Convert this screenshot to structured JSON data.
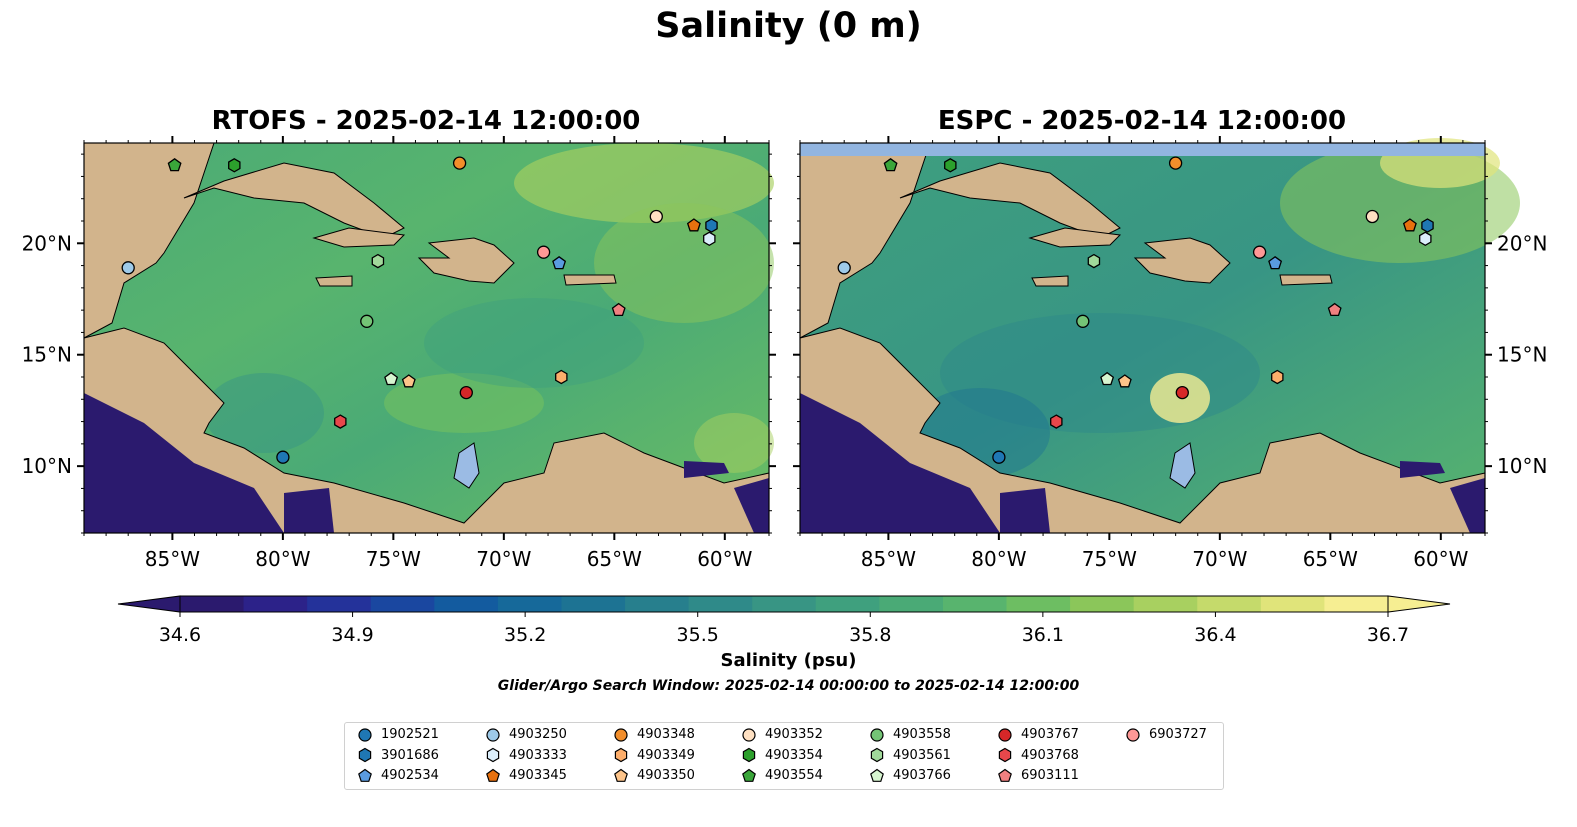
{
  "figure": {
    "title": "Salinity (0 m)",
    "colorbar_label": "Salinity (psu)",
    "search_window": "Glider/Argo Search Window: 2025-02-14 00:00:00 to 2025-02-14 12:00:00",
    "colors": {
      "land": "#d2b48c",
      "lake": "#9bbbe4",
      "missing_band": "#92b5e0"
    }
  },
  "chart_data": [
    {
      "type": "heatmap",
      "title": "RTOFS - 2025-02-14 12:00:00",
      "xlim": [
        -89,
        -58
      ],
      "ylim": [
        7,
        24.5
      ],
      "xticks": [
        -85,
        -80,
        -75,
        -70,
        -65,
        -60
      ],
      "yticks": [
        10,
        15,
        20
      ],
      "xtick_labels": [
        "85°W",
        "80°W",
        "75°W",
        "70°W",
        "65°W",
        "60°W"
      ],
      "ytick_labels": [
        "10°N",
        "15°N",
        "20°N"
      ],
      "ytick_side": "left",
      "field": "salinity",
      "units": "psu"
    },
    {
      "type": "heatmap",
      "title": "ESPC - 2025-02-14 12:00:00",
      "xlim": [
        -89,
        -58
      ],
      "ylim": [
        7,
        24.5
      ],
      "xticks": [
        -85,
        -80,
        -75,
        -70,
        -65,
        -60
      ],
      "yticks": [
        10,
        15,
        20
      ],
      "xtick_labels": [
        "85°W",
        "80°W",
        "75°W",
        "70°W",
        "65°W",
        "60°W"
      ],
      "ytick_labels": [
        "10°N",
        "15°N",
        "20°N"
      ],
      "ytick_side": "right",
      "field": "salinity",
      "units": "psu"
    }
  ],
  "colorbar": {
    "min": 34.6,
    "max": 36.7,
    "extend": "both",
    "ticks": [
      34.6,
      34.9,
      35.2,
      35.5,
      35.8,
      36.1,
      36.4,
      36.7
    ],
    "tick_labels": [
      "34.6",
      "34.9",
      "35.2",
      "35.5",
      "35.8",
      "36.1",
      "36.4",
      "36.7"
    ],
    "colors": [
      "#2b1a6e",
      "#2c2289",
      "#24329a",
      "#1a47a0",
      "#135b9f",
      "#16699a",
      "#1d7393",
      "#277f8d",
      "#2f8a89",
      "#389584",
      "#3fa07e",
      "#4aaa76",
      "#58b46e",
      "#6dbe62",
      "#8bc65a",
      "#a8d060",
      "#c5da6b",
      "#e0e47a",
      "#f6ee92"
    ]
  },
  "profilers": [
    {
      "id": "1902521",
      "lon": -80.0,
      "lat": 10.4,
      "color": "#1f77b4",
      "marker": "circle"
    },
    {
      "id": "3901686",
      "lon": -60.6,
      "lat": 20.8,
      "color": "#1f77b4",
      "marker": "hexagon"
    },
    {
      "id": "4902534",
      "lon": -67.5,
      "lat": 19.1,
      "color": "#5a9be0",
      "marker": "pentagon"
    },
    {
      "id": "4903250",
      "lon": -87.0,
      "lat": 18.9,
      "color": "#9ecae9",
      "marker": "circle"
    },
    {
      "id": "4903333",
      "lon": -60.7,
      "lat": 20.2,
      "color": "#dbeefb",
      "marker": "hexagon"
    },
    {
      "id": "4903345",
      "lon": -61.4,
      "lat": 20.8,
      "color": "#e8710e",
      "marker": "pentagon"
    },
    {
      "id": "4903348",
      "lon": -72.0,
      "lat": 23.6,
      "color": "#f28e2b",
      "marker": "circle"
    },
    {
      "id": "4903349",
      "lon": -67.4,
      "lat": 14.0,
      "color": "#fdae6b",
      "marker": "hexagon"
    },
    {
      "id": "4903350",
      "lon": -74.3,
      "lat": 13.8,
      "color": "#fdc48a",
      "marker": "pentagon"
    },
    {
      "id": "4903352",
      "lon": -63.1,
      "lat": 21.2,
      "color": "#fee0c2",
      "marker": "circle"
    },
    {
      "id": "4903354",
      "lon": -82.2,
      "lat": 23.5,
      "color": "#2ca02c",
      "marker": "hexagon"
    },
    {
      "id": "4903554",
      "lon": -84.9,
      "lat": 23.5,
      "color": "#3aa63a",
      "marker": "pentagon"
    },
    {
      "id": "4903558",
      "lon": -76.2,
      "lat": 16.5,
      "color": "#74c476",
      "marker": "circle"
    },
    {
      "id": "4903561",
      "lon": -75.7,
      "lat": 19.2,
      "color": "#a1d99b",
      "marker": "hexagon"
    },
    {
      "id": "4903766",
      "lon": -75.1,
      "lat": 13.9,
      "color": "#d7f5d0",
      "marker": "pentagon"
    },
    {
      "id": "4903767",
      "lon": -71.7,
      "lat": 13.3,
      "color": "#d62728",
      "marker": "circle"
    },
    {
      "id": "4903768",
      "lon": -77.4,
      "lat": 12.0,
      "color": "#e8474b",
      "marker": "hexagon"
    },
    {
      "id": "6903111",
      "lon": -64.8,
      "lat": 17.0,
      "color": "#f08080",
      "marker": "pentagon"
    },
    {
      "id": "6903727",
      "lon": -68.2,
      "lat": 19.6,
      "color": "#ff9896",
      "marker": "circle"
    }
  ]
}
